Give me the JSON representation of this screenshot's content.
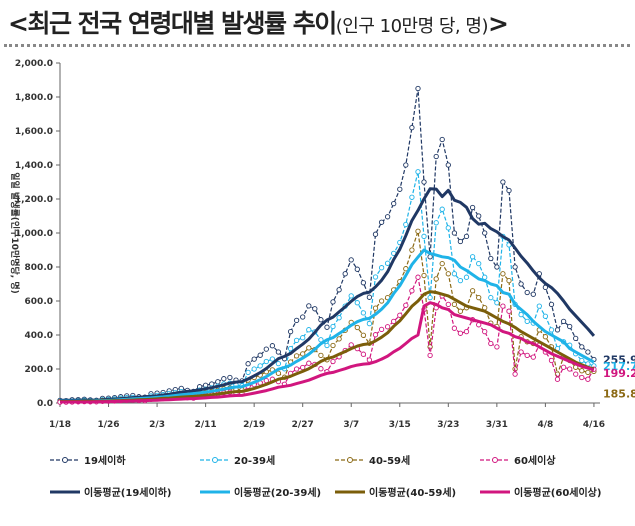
{
  "title": {
    "main": "<최근 전국 연령대별 발생률 추이",
    "sub": "(인구 10만명 당, 명)",
    "end": ">"
  },
  "chart_data": {
    "type": "line",
    "ylabel": "일일 발생률(인구10만명당, 명)",
    "ylim": [
      0,
      2000
    ],
    "yticks": [
      0,
      200,
      400,
      600,
      800,
      1000,
      1200,
      1400,
      1600,
      1800,
      2000
    ],
    "ytick_labels": [
      "0.0",
      "200.0",
      "400.0",
      "600.0",
      "800.0",
      "1,000.0",
      "1,200.0",
      "1,400.0",
      "1,600.0",
      "1,800.0",
      "2,000.0"
    ],
    "x_start": "1/18",
    "x_days": 89,
    "xtick_labels": [
      "1/18",
      "1/26",
      "2/3",
      "2/11",
      "2/19",
      "2/27",
      "3/7",
      "3/15",
      "3/23",
      "3/31",
      "4/8",
      "4/16"
    ],
    "xtick_days": [
      0,
      8,
      16,
      24,
      32,
      40,
      48,
      56,
      64,
      72,
      80,
      88
    ],
    "series": [
      {
        "name": "19세이하",
        "style": "dashed",
        "color": "#203864",
        "values": [
          15,
          14,
          19,
          20,
          22,
          18,
          16,
          27,
          29,
          32,
          37,
          42,
          44,
          37,
          35,
          54,
          58,
          62,
          71,
          79,
          86,
          74,
          68,
          96,
          104,
          112,
          125,
          143,
          150,
          135,
          130,
          231,
          258,
          281,
          317,
          337,
          300,
          260,
          420,
          486,
          506,
          571,
          554,
          490,
          446,
          595,
          666,
          760,
          842,
          787,
          707,
          622,
          993,
          1063,
          1095,
          1173,
          1257,
          1400,
          1620,
          1850,
          1300,
          860,
          1450,
          1550,
          1400,
          1000,
          950,
          980,
          1150,
          1100,
          1000,
          850,
          800,
          1300,
          1250,
          800,
          700,
          650,
          640,
          760,
          680,
          580,
          430,
          480,
          450,
          380,
          330,
          300,
          256
        ]
      },
      {
        "name": "20-39세",
        "style": "dashed",
        "color": "#1fb3e8",
        "values": [
          10,
          10,
          12,
          14,
          16,
          14,
          13,
          19,
          21,
          24,
          28,
          31,
          33,
          29,
          28,
          42,
          45,
          49,
          56,
          62,
          67,
          58,
          54,
          76,
          82,
          89,
          98,
          112,
          117,
          106,
          102,
          180,
          200,
          218,
          244,
          259,
          232,
          201,
          320,
          368,
          384,
          431,
          418,
          372,
          338,
          450,
          502,
          570,
          630,
          590,
          530,
          467,
          741,
          796,
          822,
          880,
          944,
          1050,
          1210,
          1360,
          980,
          620,
          1060,
          1140,
          1030,
          760,
          720,
          740,
          860,
          820,
          740,
          620,
          590,
          980,
          930,
          580,
          520,
          480,
          470,
          570,
          510,
          430,
          320,
          360,
          340,
          290,
          250,
          230,
          218
        ]
      },
      {
        "name": "40-59세",
        "style": "dashed",
        "color": "#8b6914",
        "values": [
          8,
          8,
          9,
          11,
          12,
          11,
          10,
          15,
          16,
          18,
          21,
          23,
          25,
          22,
          21,
          31,
          34,
          37,
          42,
          46,
          50,
          43,
          40,
          57,
          62,
          67,
          74,
          84,
          88,
          80,
          77,
          135,
          150,
          164,
          184,
          195,
          175,
          152,
          241,
          277,
          289,
          324,
          314,
          280,
          254,
          338,
          377,
          428,
          474,
          444,
          398,
          351,
          558,
          600,
          620,
          665,
          714,
          790,
          900,
          1010,
          750,
          330,
          730,
          820,
          760,
          580,
          540,
          560,
          660,
          620,
          560,
          470,
          450,
          760,
          720,
          200,
          390,
          360,
          350,
          430,
          390,
          330,
          170,
          270,
          250,
          210,
          190,
          180,
          186
        ]
      },
      {
        "name": "60세이상",
        "style": "dashed",
        "color": "#d1167e",
        "values": [
          5,
          5,
          6,
          7,
          8,
          7,
          7,
          10,
          11,
          12,
          14,
          16,
          17,
          15,
          14,
          22,
          24,
          26,
          30,
          33,
          36,
          31,
          29,
          41,
          44,
          48,
          53,
          61,
          64,
          58,
          56,
          98,
          108,
          118,
          132,
          140,
          126,
          110,
          174,
          200,
          209,
          234,
          227,
          202,
          184,
          244,
          272,
          309,
          342,
          320,
          287,
          253,
          402,
          433,
          448,
          480,
          516,
          575,
          660,
          740,
          550,
          280,
          560,
          630,
          580,
          440,
          410,
          420,
          490,
          460,
          420,
          350,
          330,
          570,
          540,
          170,
          300,
          280,
          270,
          340,
          300,
          250,
          140,
          210,
          200,
          170,
          150,
          140,
          199
        ]
      },
      {
        "name": "이동평균(19세이하)",
        "style": "solid",
        "color": "#203864",
        "values": [
          16,
          16,
          16,
          17,
          17,
          17,
          17,
          18,
          21,
          23,
          25,
          28,
          32,
          34,
          37,
          40,
          43,
          47,
          52,
          58,
          64,
          68,
          71,
          77,
          84,
          90,
          98,
          107,
          117,
          123,
          126,
          141,
          160,
          179,
          203,
          232,
          261,
          274,
          292,
          320,
          346,
          376,
          415,
          458,
          488,
          505,
          536,
          566,
          598,
          626,
          645,
          652,
          683,
          722,
          772,
          844,
          904,
          984,
          1073,
          1133,
          1200,
          1260,
          1258,
          1214,
          1251,
          1193,
          1180,
          1151,
          1085,
          1052,
          1057,
          1026,
          1007,
          979,
          959,
          911,
          863,
          823,
          777,
          736,
          703,
          679,
          645,
          600,
          551,
          513,
          474,
          436,
          395
        ]
      },
      {
        "name": "이동평균(20-39세)",
        "style": "solid",
        "color": "#1fb3e8",
        "values": [
          11,
          11,
          11,
          11,
          12,
          12,
          13,
          14,
          15,
          17,
          19,
          21,
          24,
          26,
          28,
          30,
          33,
          36,
          40,
          44,
          49,
          52,
          55,
          59,
          64,
          69,
          75,
          82,
          89,
          94,
          96,
          108,
          122,
          137,
          155,
          177,
          199,
          209,
          223,
          245,
          264,
          287,
          316,
          349,
          372,
          385,
          409,
          432,
          457,
          478,
          492,
          498,
          522,
          552,
          589,
          644,
          690,
          750,
          814,
          858,
          900,
          880,
          870,
          860,
          855,
          840,
          800,
          780,
          755,
          730,
          720,
          700,
          690,
          650,
          640,
          580,
          550,
          520,
          480,
          450,
          420,
          400,
          380,
          360,
          320,
          300,
          280,
          260,
          240
        ]
      },
      {
        "name": "이동평균(40-59세)",
        "style": "solid",
        "color": "#7b5e0a",
        "values": [
          9,
          9,
          9,
          9,
          10,
          10,
          10,
          11,
          12,
          13,
          14,
          16,
          17,
          19,
          20,
          22,
          24,
          27,
          29,
          32,
          35,
          37,
          39,
          42,
          46,
          49,
          53,
          58,
          63,
          67,
          68,
          76,
          86,
          97,
          110,
          125,
          140,
          147,
          157,
          172,
          186,
          202,
          222,
          245,
          261,
          270,
          287,
          303,
          320,
          335,
          344,
          348,
          365,
          387,
          413,
          451,
          483,
          525,
          569,
          600,
          640,
          655,
          650,
          640,
          630,
          610,
          590,
          570,
          560,
          550,
          540,
          520,
          500,
          480,
          465,
          445,
          420,
          400,
          380,
          360,
          340,
          320,
          300,
          280,
          260,
          240,
          225,
          210,
          200
        ]
      },
      {
        "name": "이동평균(60세이상)",
        "style": "solid",
        "color": "#d1167e",
        "values": [
          6,
          6,
          6,
          6,
          6,
          6,
          7,
          7,
          8,
          9,
          10,
          11,
          12,
          13,
          14,
          15,
          16,
          18,
          19,
          21,
          23,
          25,
          26,
          28,
          30,
          33,
          35,
          38,
          42,
          44,
          45,
          51,
          58,
          65,
          73,
          83,
          93,
          98,
          104,
          114,
          124,
          134,
          148,
          163,
          174,
          180,
          191,
          202,
          214,
          223,
          229,
          232,
          243,
          258,
          276,
          301,
          322,
          350,
          380,
          400,
          570,
          590,
          580,
          560,
          550,
          520,
          510,
          500,
          490,
          480,
          470,
          460,
          440,
          420,
          410,
          390,
          380,
          360,
          350,
          330,
          310,
          290,
          275,
          260,
          245,
          230,
          215,
          205,
          195
        ]
      }
    ],
    "end_labels": [
      {
        "text": "255.9",
        "color": "#203864"
      },
      {
        "text": "217.7",
        "color": "#1fb3e8"
      },
      {
        "text": "199.2",
        "color": "#d1167e"
      },
      {
        "text": "185.8",
        "color": "#8b6914"
      }
    ]
  }
}
